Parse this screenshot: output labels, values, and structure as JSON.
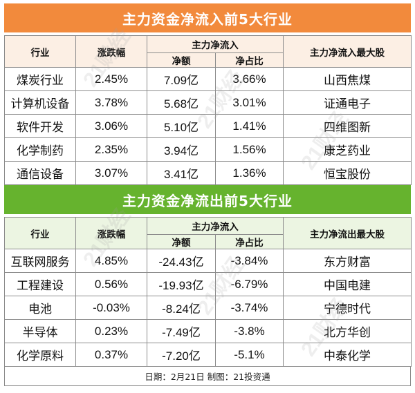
{
  "inflow": {
    "title": "主力资金净流入前5大行业",
    "headers": {
      "industry": "行业",
      "change": "涨跌幅",
      "net_group": "主力净流入",
      "amount": "净额",
      "ratio": "净占比",
      "top_stock": "主力净流入最大股"
    },
    "rows": [
      {
        "industry": "煤炭行业",
        "change": "2.45%",
        "amount": "7.09亿",
        "ratio": "3.66%",
        "stock": "山西焦煤"
      },
      {
        "industry": "计算机设备",
        "change": "3.78%",
        "amount": "5.68亿",
        "ratio": "3.01%",
        "stock": "证通电子"
      },
      {
        "industry": "软件开发",
        "change": "3.06%",
        "amount": "5.10亿",
        "ratio": "1.41%",
        "stock": "四维图新"
      },
      {
        "industry": "化学制药",
        "change": "2.35%",
        "amount": "3.94亿",
        "ratio": "1.56%",
        "stock": "康芝药业"
      },
      {
        "industry": "通信设备",
        "change": "3.07%",
        "amount": "3.41亿",
        "ratio": "1.36%",
        "stock": "恒宝股份"
      }
    ]
  },
  "outflow": {
    "title": "主力资金净流出前5大行业",
    "headers": {
      "industry": "行业",
      "change": "涨跌幅",
      "net_group": "主力净流入",
      "amount": "净额",
      "ratio": "净占比",
      "top_stock": "主力净流出最大股"
    },
    "rows": [
      {
        "industry": "互联网服务",
        "change": "4.85%",
        "amount": "-24.43亿",
        "ratio": "-3.84%",
        "stock": "东方财富"
      },
      {
        "industry": "工程建设",
        "change": "0.56%",
        "amount": "-19.93亿",
        "ratio": "-6.79%",
        "stock": "中国电建"
      },
      {
        "industry": "电池",
        "change": "-0.03%",
        "amount": "-8.24亿",
        "ratio": "-3.74%",
        "stock": "宁德时代"
      },
      {
        "industry": "半导体",
        "change": "0.23%",
        "amount": "-7.49亿",
        "ratio": "-3.8%",
        "stock": "北方华创"
      },
      {
        "industry": "化学原料",
        "change": "0.37%",
        "amount": "-7.20亿",
        "ratio": "-5.1%",
        "stock": "中泰化学"
      }
    ]
  },
  "footer": "日期：2月21日 制图：21投资通",
  "watermark": "21财经",
  "colors": {
    "inflow_banner": "#f28a3c",
    "inflow_header_bg": "#fcefe4",
    "outflow_banner": "#66b32e",
    "outflow_header_bg": "#ecf5e2",
    "border": "#8b8b8b"
  }
}
